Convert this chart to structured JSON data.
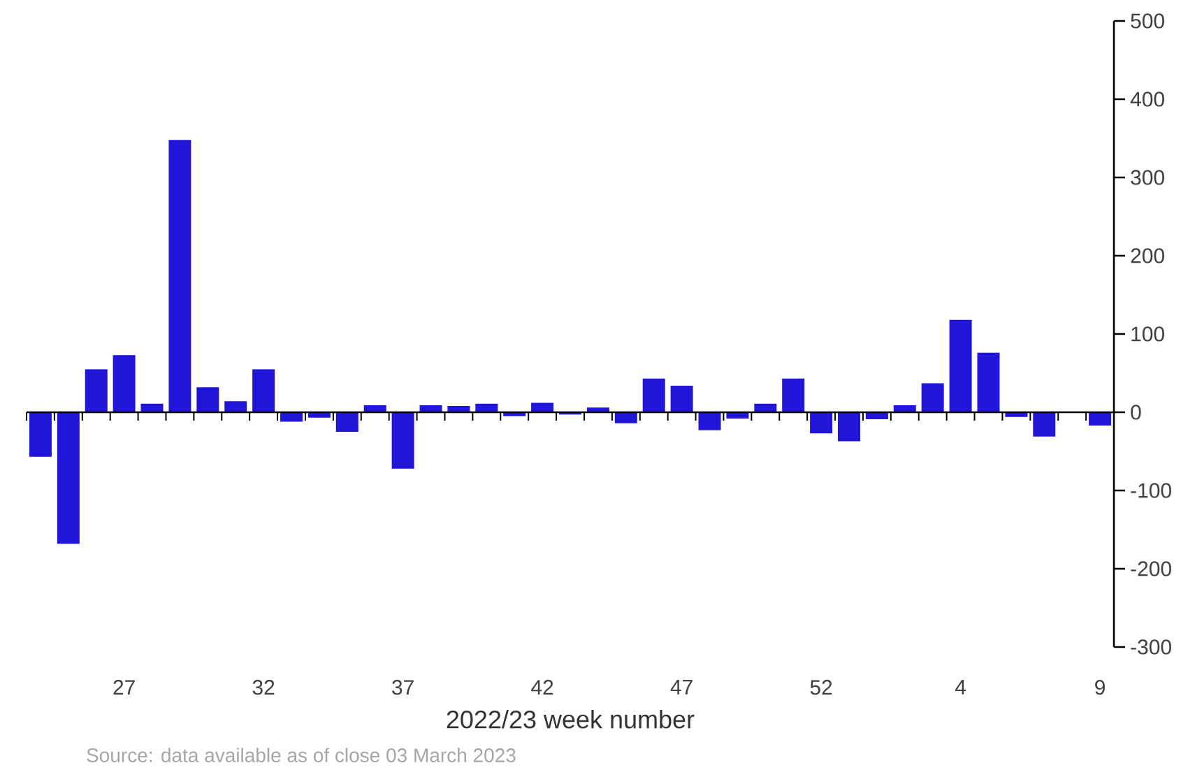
{
  "chart_data": {
    "type": "bar",
    "xlabel": "2022/23 week number",
    "categories": [
      null,
      null,
      null,
      "27",
      null,
      null,
      null,
      null,
      "32",
      null,
      null,
      null,
      null,
      "37",
      null,
      null,
      null,
      null,
      "42",
      null,
      null,
      null,
      null,
      "47",
      null,
      null,
      null,
      null,
      "52",
      null,
      null,
      null,
      null,
      "4",
      null,
      null,
      null,
      null,
      "9"
    ],
    "values": [
      -57,
      -168,
      55,
      73,
      11,
      348,
      32,
      14,
      55,
      -12,
      -7,
      -25,
      9,
      -72,
      9,
      8,
      11,
      -5,
      12,
      -3,
      6,
      -14,
      43,
      34,
      -23,
      -8,
      11,
      43,
      -27,
      -37,
      -9,
      9,
      37,
      118,
      76,
      -6,
      -31,
      null,
      -17
    ],
    "color": "#2115d9",
    "ylim": [
      -300,
      500
    ],
    "yticks": [
      -300,
      -200,
      -100,
      0,
      100,
      200,
      300,
      400,
      500
    ],
    "annotations": [
      "Source: data available as of close 03 March 2023"
    ]
  }
}
